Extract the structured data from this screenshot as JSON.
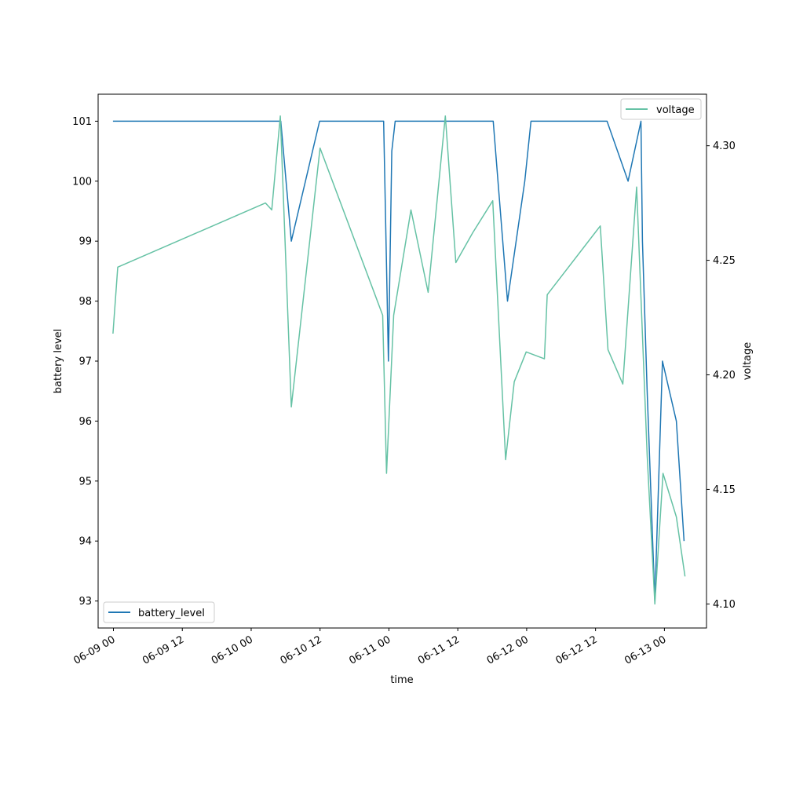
{
  "chart_data": {
    "type": "line",
    "xlabel": "time",
    "ylabel_left": "battery level",
    "ylabel_right": "voltage",
    "x_ticks": [
      {
        "label": "06-09 00",
        "t": "2024-06-09T00:00"
      },
      {
        "label": "06-09 12",
        "t": "2024-06-09T12:00"
      },
      {
        "label": "06-10 00",
        "t": "2024-06-10T00:00"
      },
      {
        "label": "06-10 12",
        "t": "2024-06-10T12:00"
      },
      {
        "label": "06-11 00",
        "t": "2024-06-11T00:00"
      },
      {
        "label": "06-11 12",
        "t": "2024-06-11T12:00"
      },
      {
        "label": "06-12 00",
        "t": "2024-06-12T00:00"
      },
      {
        "label": "06-12 12",
        "t": "2024-06-12T12:00"
      },
      {
        "label": "06-13 00",
        "t": "2024-06-13T00:00"
      }
    ],
    "xlim": [
      "2024-06-08T21:20",
      "2024-06-13T07:20"
    ],
    "left_axis": {
      "ylim": [
        92.55,
        101.45
      ],
      "ticks": [
        93,
        94,
        95,
        96,
        97,
        98,
        99,
        100,
        101
      ]
    },
    "right_axis": {
      "ylim": [
        4.0895,
        4.3225
      ],
      "ticks": [
        "4.10",
        "4.15",
        "4.20",
        "4.25",
        "4.30"
      ]
    },
    "series": [
      {
        "name": "battery_level",
        "axis": "left",
        "color": "#1f77b4",
        "points": [
          [
            "2024-06-08T23:55",
            101
          ],
          [
            "2024-06-10T05:10",
            101
          ],
          [
            "2024-06-10T07:00",
            99
          ],
          [
            "2024-06-10T11:55",
            101
          ],
          [
            "2024-06-10T23:05",
            101
          ],
          [
            "2024-06-10T23:55",
            97
          ],
          [
            "2024-06-11T00:30",
            100.5
          ],
          [
            "2024-06-11T01:05",
            101
          ],
          [
            "2024-06-11T18:10",
            101
          ],
          [
            "2024-06-11T20:40",
            98
          ],
          [
            "2024-06-11T23:40",
            100
          ],
          [
            "2024-06-12T00:45",
            101
          ],
          [
            "2024-06-12T14:00",
            101
          ],
          [
            "2024-06-12T17:40",
            100
          ],
          [
            "2024-06-12T19:55",
            101
          ],
          [
            "2024-06-12T20:10",
            99
          ],
          [
            "2024-06-12T21:00",
            96.5
          ],
          [
            "2024-06-12T22:20",
            93
          ],
          [
            "2024-06-12T23:40",
            97
          ],
          [
            "2024-06-13T02:05",
            96
          ],
          [
            "2024-06-13T03:25",
            94
          ]
        ]
      },
      {
        "name": "voltage",
        "axis": "right",
        "color": "#66c2a5",
        "points": [
          [
            "2024-06-08T23:55",
            4.218
          ],
          [
            "2024-06-09T00:45",
            4.247
          ],
          [
            "2024-06-10T02:30",
            4.275
          ],
          [
            "2024-06-10T03:35",
            4.272
          ],
          [
            "2024-06-10T05:05",
            4.313
          ],
          [
            "2024-06-10T07:00",
            4.186
          ],
          [
            "2024-06-10T12:00",
            4.299
          ],
          [
            "2024-06-10T22:55",
            4.226
          ],
          [
            "2024-06-10T23:35",
            4.157
          ],
          [
            "2024-06-11T00:50",
            4.226
          ],
          [
            "2024-06-11T03:50",
            4.272
          ],
          [
            "2024-06-11T06:50",
            4.236
          ],
          [
            "2024-06-11T09:50",
            4.313
          ],
          [
            "2024-06-11T11:40",
            4.249
          ],
          [
            "2024-06-11T14:35",
            4.262
          ],
          [
            "2024-06-11T18:05",
            4.276
          ],
          [
            "2024-06-11T20:20",
            4.163
          ],
          [
            "2024-06-11T21:50",
            4.197
          ],
          [
            "2024-06-11T23:55",
            4.21
          ],
          [
            "2024-06-12T03:05",
            4.207
          ],
          [
            "2024-06-12T03:35",
            4.235
          ],
          [
            "2024-06-12T12:50",
            4.265
          ],
          [
            "2024-06-12T14:10",
            4.211
          ],
          [
            "2024-06-12T16:45",
            4.196
          ],
          [
            "2024-06-12T19:10",
            4.282
          ],
          [
            "2024-06-12T21:00",
            4.165
          ],
          [
            "2024-06-12T22:20",
            4.1
          ],
          [
            "2024-06-12T23:45",
            4.157
          ],
          [
            "2024-06-13T02:05",
            4.138
          ],
          [
            "2024-06-13T03:35",
            4.112
          ]
        ]
      }
    ],
    "legends": [
      {
        "series": "battery_level",
        "placement": "lower-left"
      },
      {
        "series": "voltage",
        "placement": "upper-right"
      }
    ],
    "grid": false
  }
}
